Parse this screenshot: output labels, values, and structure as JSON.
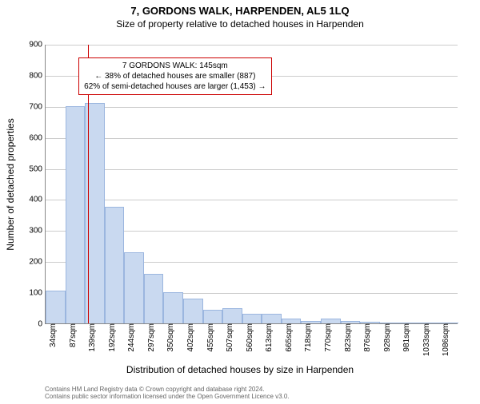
{
  "title": "7, GORDONS WALK, HARPENDEN, AL5 1LQ",
  "subtitle": "Size of property relative to detached houses in Harpenden",
  "y_axis_label": "Number of detached properties",
  "x_axis_label": "Distribution of detached houses by size in Harpenden",
  "footer_line1": "Contains HM Land Registry data © Crown copyright and database right 2024.",
  "footer_line2": "Contains public sector information licensed under the Open Government Licence v3.0.",
  "chart": {
    "type": "histogram",
    "ylim": [
      0,
      900
    ],
    "ytick_step": 100,
    "xlim_sqm": [
      34,
      1112
    ],
    "x_tick_labels": [
      "34sqm",
      "87sqm",
      "139sqm",
      "192sqm",
      "244sqm",
      "297sqm",
      "350sqm",
      "402sqm",
      "455sqm",
      "507sqm",
      "560sqm",
      "613sqm",
      "665sqm",
      "718sqm",
      "770sqm",
      "823sqm",
      "876sqm",
      "928sqm",
      "981sqm",
      "1033sqm",
      "1086sqm"
    ],
    "bar_values": [
      105,
      700,
      710,
      375,
      230,
      160,
      100,
      80,
      45,
      50,
      30,
      30,
      15,
      8,
      15,
      8,
      5,
      0,
      3,
      3,
      3
    ],
    "bar_color": "#c9d9f0",
    "bar_border": "#9bb6df",
    "grid_color": "#cccccc",
    "axis_color": "#888888",
    "background": "#ffffff",
    "marker": {
      "sqm": 145,
      "color": "#cc0000"
    },
    "annotation": {
      "lines": [
        "7 GORDONS WALK: 145sqm",
        "← 38% of detached houses are smaller (887)",
        "62% of semi-detached houses are larger (1,453) →"
      ],
      "border_color": "#cc0000",
      "left_sqm": 120,
      "top_value": 860
    }
  }
}
